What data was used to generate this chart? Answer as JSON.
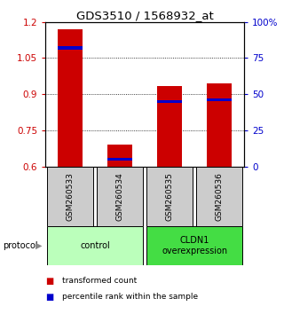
{
  "title": "GDS3510 / 1568932_at",
  "samples": [
    "GSM260533",
    "GSM260534",
    "GSM260535",
    "GSM260536"
  ],
  "transformed_counts": [
    1.17,
    0.69,
    0.935,
    0.945
  ],
  "percentile_ranks": [
    0.82,
    0.05,
    0.45,
    0.46
  ],
  "ylim_left": [
    0.6,
    1.2
  ],
  "ylim_right": [
    0.0,
    1.0
  ],
  "yticks_left": [
    0.6,
    0.75,
    0.9,
    1.05,
    1.2
  ],
  "yticks_right": [
    0.0,
    0.25,
    0.5,
    0.75,
    1.0
  ],
  "ytick_labels_right": [
    "0",
    "25",
    "50",
    "75",
    "100%"
  ],
  "ytick_labels_left": [
    "0.6",
    "0.75",
    "0.9",
    "1.05",
    "1.2"
  ],
  "groups": [
    {
      "label": "control",
      "indices": [
        0,
        1
      ],
      "color": "#bbffbb"
    },
    {
      "label": "CLDN1\noverexpression",
      "indices": [
        2,
        3
      ],
      "color": "#44dd44"
    }
  ],
  "bar_color": "#cc0000",
  "percentile_color": "#0000cc",
  "bar_width": 0.5,
  "background_color": "#ffffff",
  "sample_bg_color": "#cccccc",
  "legend_red_label": "transformed count",
  "legend_blue_label": "percentile rank within the sample",
  "protocol_label": "protocol"
}
